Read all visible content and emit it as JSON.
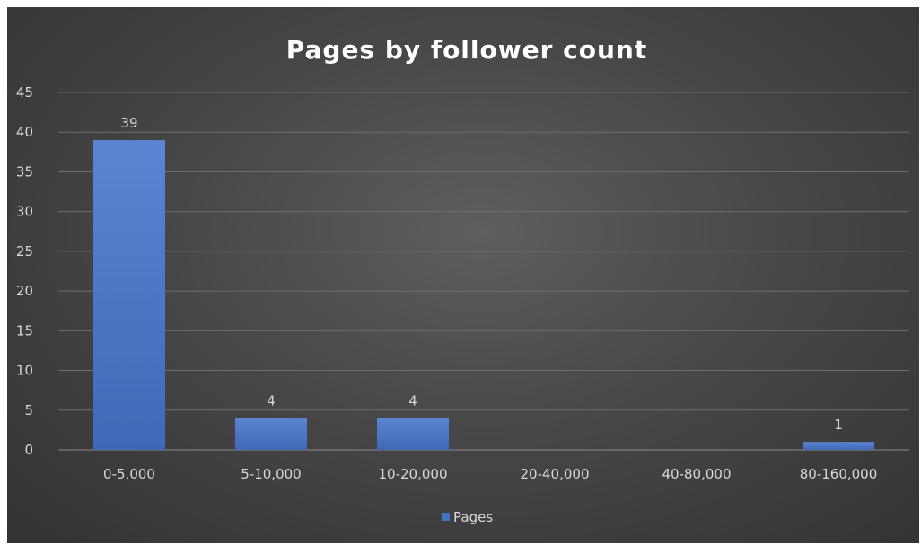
{
  "chart_data": {
    "type": "bar",
    "title": "Pages by follower count",
    "categories": [
      "0-5,000",
      "5-10,000",
      "10-20,000",
      "20-40,000",
      "40-80,000",
      "80-160,000"
    ],
    "series": [
      {
        "name": "Pages",
        "values": [
          39,
          4,
          4,
          0,
          0,
          1
        ],
        "color": "#4472c4"
      }
    ],
    "data_labels": [
      "39",
      "4",
      "4",
      "",
      "",
      "1"
    ],
    "ylim": [
      0,
      45
    ],
    "yticks": [
      0,
      5,
      10,
      15,
      20,
      25,
      30,
      35,
      40,
      45
    ],
    "grid": true,
    "legend_position": "bottom",
    "background": "#474747"
  }
}
